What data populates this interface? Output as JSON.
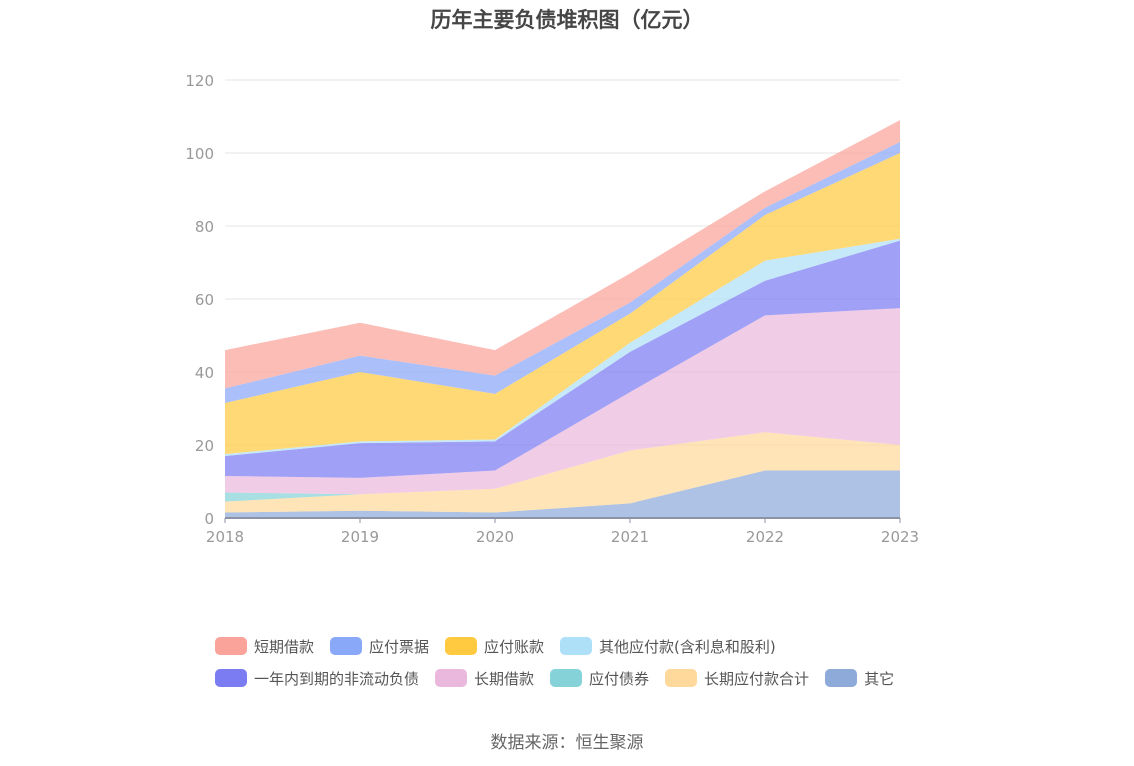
{
  "chart_data": {
    "type": "area",
    "stacked": true,
    "title": "历年主要负债堆积图（亿元）",
    "categories": [
      "2018",
      "2019",
      "2020",
      "2021",
      "2022",
      "2023"
    ],
    "ylim": [
      0,
      120
    ],
    "yticks": [
      0,
      20,
      40,
      60,
      80,
      100,
      120
    ],
    "grid": true,
    "legend_position": "bottom",
    "series": [
      {
        "name": "其它",
        "color": "#8eaad9",
        "values": [
          1.5,
          2,
          1.5,
          4,
          13,
          13
        ]
      },
      {
        "name": "长期应付款合计",
        "color": "#ffd99b",
        "values": [
          3,
          4.5,
          6.5,
          14.5,
          10.5,
          7
        ]
      },
      {
        "name": "应付债券",
        "color": "#85d2d8",
        "values": [
          2.5,
          0,
          0,
          0,
          0,
          0
        ]
      },
      {
        "name": "长期借款",
        "color": "#eab8dc",
        "values": [
          4.5,
          4.5,
          5,
          16,
          32,
          37.5
        ]
      },
      {
        "name": "一年内到期的非流动负债",
        "color": "#7b7cf2",
        "values": [
          5.5,
          9.5,
          8,
          11,
          9.5,
          18.5
        ]
      },
      {
        "name": "其他应付款(含利息和股利)",
        "color": "#aee0f7",
        "values": [
          0.5,
          0.5,
          0.5,
          2.5,
          5.5,
          0.5
        ]
      },
      {
        "name": "应付账款",
        "color": "#ffca40",
        "values": [
          14,
          19,
          12.5,
          8,
          12.5,
          23.5
        ]
      },
      {
        "name": "应付票据",
        "color": "#8aa8f8",
        "values": [
          4,
          4.5,
          5,
          3,
          2,
          3
        ]
      },
      {
        "name": "短期借款",
        "color": "#f9a39a",
        "values": [
          10.5,
          9,
          7,
          8,
          4.5,
          6
        ]
      }
    ],
    "legend_order": [
      "短期借款",
      "应付票据",
      "应付账款",
      "其他应付款(含利息和股利)",
      "一年内到期的非流动负债",
      "长期借款",
      "应付债券",
      "长期应付款合计",
      "其它"
    ]
  },
  "source": "数据来源：恒生聚源"
}
